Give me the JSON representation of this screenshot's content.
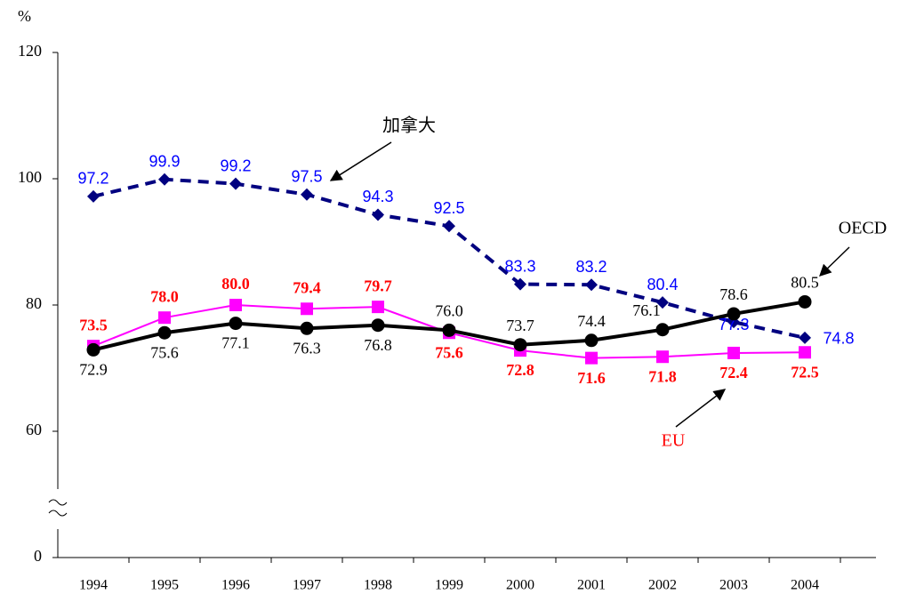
{
  "chart_data": {
    "type": "line",
    "y_unit_label": "%",
    "categories": [
      "1994",
      "1995",
      "1996",
      "1997",
      "1998",
      "1999",
      "2000",
      "2001",
      "2002",
      "2003",
      "2004"
    ],
    "ylim": [
      0,
      120
    ],
    "axis_break": [
      0,
      60
    ],
    "yticks": [
      0,
      60,
      80,
      100,
      120
    ],
    "series": [
      {
        "name": "加拿大",
        "color": "#000080",
        "label_color": "#0000ff",
        "dash": true,
        "marker": "diamond",
        "values": [
          97.2,
          99.9,
          99.2,
          97.5,
          94.3,
          92.5,
          83.3,
          83.2,
          80.4,
          77.3,
          74.8
        ],
        "value_labels": [
          "97.2",
          "99.9",
          "99.2",
          "97.5",
          "94.3",
          "92.5",
          "83.3",
          "83.2",
          "80.4",
          "77.3",
          "74.8"
        ]
      },
      {
        "name": "EU",
        "color": "#ff00ff",
        "label_color": "#ff0000",
        "dash": false,
        "marker": "square",
        "values": [
          73.5,
          78.0,
          80.0,
          79.4,
          79.7,
          75.6,
          72.8,
          71.6,
          71.8,
          72.4,
          72.5
        ],
        "value_labels": [
          "73.5",
          "78.0",
          "80.0",
          "79.4",
          "79.7",
          "75.6",
          "72.8",
          "71.6",
          "71.8",
          "72.4",
          "72.5"
        ]
      },
      {
        "name": "OECD",
        "color": "#000000",
        "label_color": "#000000",
        "dash": false,
        "marker": "circle",
        "values": [
          72.9,
          75.6,
          77.1,
          76.3,
          76.8,
          76.0,
          73.7,
          74.4,
          76.1,
          78.6,
          80.5
        ],
        "value_labels": [
          "72.9",
          "75.6",
          "77.1",
          "76.3",
          "76.8",
          "76.0",
          "73.7",
          "74.4",
          "76.1",
          "78.6",
          "80.5"
        ]
      }
    ]
  }
}
